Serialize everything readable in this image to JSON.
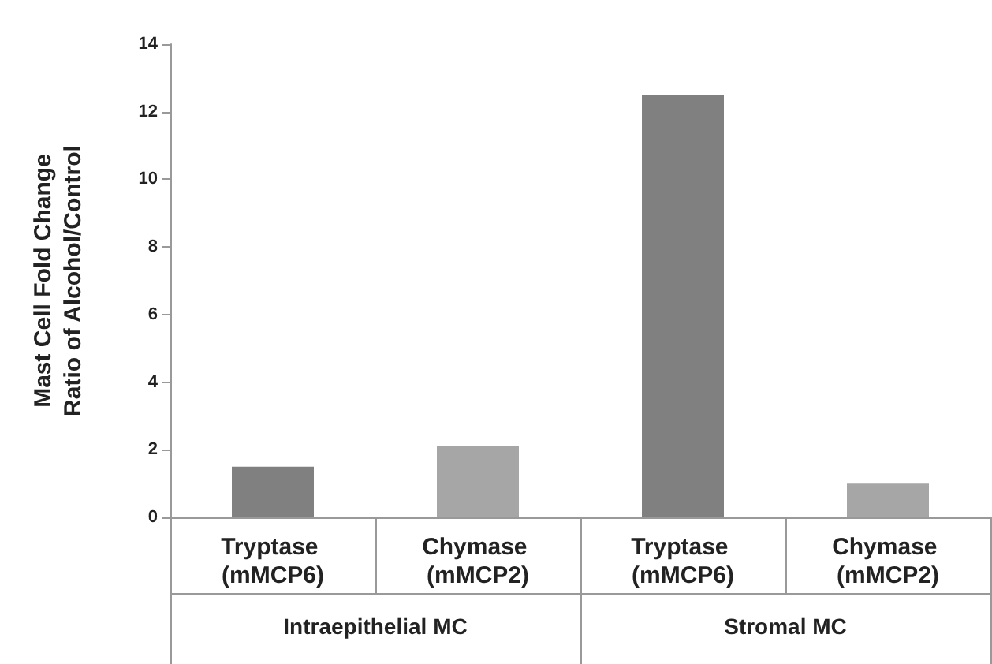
{
  "chart_data": {
    "type": "bar",
    "ylabel": "Mast Cell Fold Change\nRatio of Alcohol/Control",
    "categories": [
      "Tryptase (mMCP6)",
      "Chymase (mMCP2)",
      "Tryptase (mMCP6)",
      "Chymase (mMCP2)"
    ],
    "values": [
      1.5,
      2.1,
      12.5,
      1.0
    ],
    "colors": [
      "#808080",
      "#a6a6a6",
      "#808080",
      "#a6a6a6"
    ],
    "ylim": [
      0,
      14
    ],
    "yticks": [
      0,
      2,
      4,
      6,
      8,
      10,
      12,
      14
    ],
    "grid": false,
    "annotations": [
      "Intraepithelial MC",
      "Stromal MC"
    ]
  }
}
